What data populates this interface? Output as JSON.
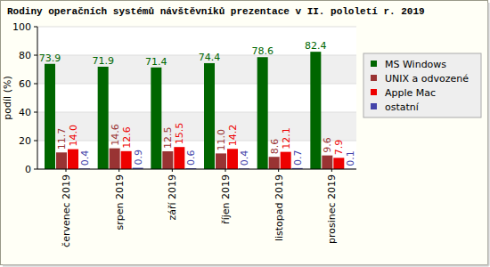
{
  "chart_data": {
    "type": "bar",
    "title": "Rodiny operačních systémů návštěvníků prezentace v II. pololetí r. 2019",
    "y_label": "podíl (%)",
    "categories": [
      "červenec 2019",
      "srpen 2019",
      "září 2019",
      "říjen 2019",
      "listopad 2019",
      "prosinec 2019"
    ],
    "series": [
      {
        "name": "MS Windows",
        "color": "#006600",
        "values": [
          73.9,
          71.9,
          71.4,
          74.4,
          78.6,
          82.4
        ],
        "value_labels": [
          "73.9",
          "71.9",
          "71.4",
          "74.4",
          "78.6",
          "82.4"
        ]
      },
      {
        "name": "UNIX a odvozené",
        "color": "#993333",
        "values": [
          11.7,
          14.6,
          12.5,
          11.0,
          8.6,
          9.6
        ],
        "value_labels": [
          "11.7",
          "14.6",
          "12.5",
          "11.0",
          "8.6",
          "9.6"
        ]
      },
      {
        "name": "Apple Mac",
        "color": "#ee0000",
        "values": [
          14.0,
          12.6,
          15.5,
          14.2,
          12.1,
          7.9
        ],
        "value_labels": [
          "14.0",
          "12.6",
          "15.5",
          "14.2",
          "12.1",
          "7.9"
        ]
      },
      {
        "name": "ostatní",
        "color": "#4444aa",
        "values": [
          0.4,
          0.9,
          0.6,
          0.4,
          0.7,
          0.1
        ],
        "value_labels": [
          "0.4",
          "0.9",
          "0.6",
          "0.4",
          "0.7",
          "0.1"
        ]
      }
    ],
    "ylim": [
      0,
      100
    ],
    "yticks": [
      0,
      20,
      40,
      60,
      80,
      100
    ],
    "grid": true,
    "legend": "right",
    "data_labels": true
  }
}
